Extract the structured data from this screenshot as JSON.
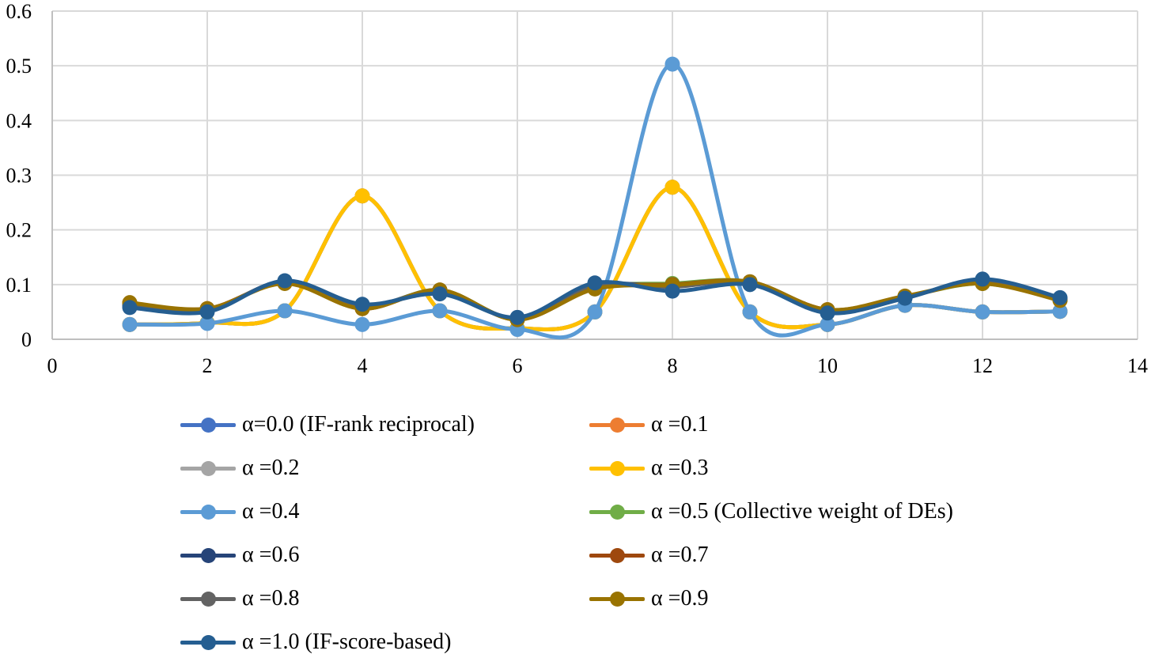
{
  "chart_data": {
    "type": "line",
    "smooth": true,
    "grid": true,
    "legend_position": "bottom",
    "xlim": [
      0,
      14
    ],
    "ylim": [
      0,
      0.6
    ],
    "x_ticks": [
      "0",
      "2",
      "4",
      "6",
      "8",
      "10",
      "12",
      "14"
    ],
    "y_ticks": [
      "0",
      "0.1",
      "0.2",
      "0.3",
      "0.4",
      "0.5",
      "0.6"
    ],
    "x_tick_values": [
      0,
      2,
      4,
      6,
      8,
      10,
      12,
      14
    ],
    "y_tick_values": [
      0,
      0.1,
      0.2,
      0.3,
      0.4,
      0.5,
      0.6
    ],
    "x": [
      1,
      2,
      3,
      4,
      5,
      6,
      7,
      8,
      9,
      10,
      11,
      12,
      13
    ],
    "series": [
      {
        "name": "α=0.0 (IF-rank reciprocal)",
        "color": "#4472C4",
        "values": [
          0.027,
          0.03,
          0.052,
          0.262,
          0.052,
          0.02,
          0.05,
          0.278,
          0.05,
          0.027,
          0.062,
          0.05,
          0.051
        ]
      },
      {
        "name": "α =0.1",
        "color": "#ED7D31",
        "values": [
          0.027,
          0.03,
          0.052,
          0.262,
          0.052,
          0.02,
          0.05,
          0.278,
          0.05,
          0.027,
          0.062,
          0.05,
          0.051
        ]
      },
      {
        "name": "α =0.2",
        "color": "#A5A5A5",
        "values": [
          0.027,
          0.03,
          0.052,
          0.262,
          0.052,
          0.02,
          0.05,
          0.278,
          0.05,
          0.027,
          0.062,
          0.05,
          0.051
        ]
      },
      {
        "name": "α =0.3",
        "color": "#FFC000",
        "values": [
          0.027,
          0.03,
          0.052,
          0.262,
          0.052,
          0.02,
          0.05,
          0.278,
          0.05,
          0.027,
          0.062,
          0.05,
          0.051
        ]
      },
      {
        "name": "α =0.4",
        "color": "#5B9BD5",
        "values": [
          0.027,
          0.029,
          0.052,
          0.027,
          0.052,
          0.018,
          0.05,
          0.503,
          0.05,
          0.027,
          0.062,
          0.05,
          0.051
        ]
      },
      {
        "name": "α =0.5 (Collective weight of DEs)",
        "color": "#70AD47",
        "values": [
          0.065,
          0.055,
          0.104,
          0.058,
          0.09,
          0.037,
          0.094,
          0.102,
          0.105,
          0.053,
          0.078,
          0.102,
          0.072
        ]
      },
      {
        "name": "α =0.6",
        "color": "#264478",
        "values": [
          0.062,
          0.053,
          0.106,
          0.06,
          0.088,
          0.038,
          0.098,
          0.097,
          0.104,
          0.051,
          0.077,
          0.105,
          0.073
        ]
      },
      {
        "name": "α =0.7",
        "color": "#9E480E",
        "values": [
          0.066,
          0.056,
          0.103,
          0.056,
          0.09,
          0.036,
          0.093,
          0.1,
          0.105,
          0.054,
          0.078,
          0.103,
          0.072
        ]
      },
      {
        "name": "α =0.8",
        "color": "#636363",
        "values": [
          0.064,
          0.054,
          0.105,
          0.059,
          0.089,
          0.037,
          0.097,
          0.096,
          0.104,
          0.052,
          0.077,
          0.106,
          0.073
        ]
      },
      {
        "name": "α =0.9",
        "color": "#997300",
        "values": [
          0.067,
          0.056,
          0.102,
          0.056,
          0.09,
          0.036,
          0.092,
          0.099,
          0.105,
          0.054,
          0.079,
          0.102,
          0.071
        ]
      },
      {
        "name": "α =1.0 (IF-score-based)",
        "color": "#255E91",
        "values": [
          0.058,
          0.05,
          0.107,
          0.064,
          0.083,
          0.04,
          0.103,
          0.088,
          0.1,
          0.048,
          0.075,
          0.11,
          0.076
        ]
      }
    ]
  }
}
